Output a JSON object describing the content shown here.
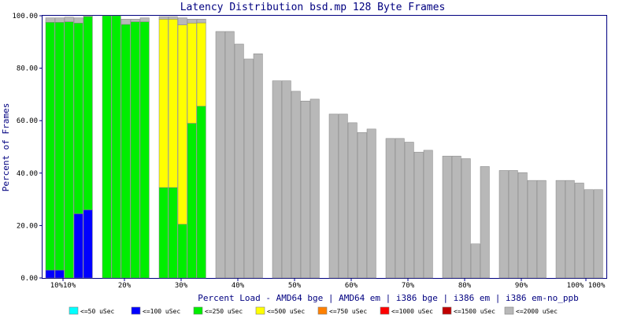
{
  "chart_data": {
    "type": "bar",
    "stacked": true,
    "title": "Latency Distribution bsd.mp 128 Byte Frames",
    "xlabel": "Percent Load - AMD64 bge | AMD64 em | i386 bge | i386 em | i386 em-no_ppb",
    "ylabel": "Percent of Frames",
    "ylim": [
      0,
      100
    ],
    "yticks": [
      "0.00",
      "20.00",
      "40.00",
      "60.00",
      "80.00",
      "100.00"
    ],
    "grid": false,
    "legend_position": "bottom",
    "x_tick_labels": [
      "10%10%",
      "20%",
      "30%",
      "40%",
      "50%",
      "60%",
      "70%",
      "80%",
      "90%",
      "100% 100%"
    ],
    "groups_by_load": [
      "10%",
      "20%",
      "30%",
      "40%",
      "50%",
      "60%",
      "70%",
      "80%",
      "90%",
      "100%"
    ],
    "configs": [
      "AMD64 bge",
      "AMD64 em",
      "i386 bge",
      "i386 em",
      "i386 em-no_ppb"
    ],
    "series": [
      {
        "name": "<=50 uSec",
        "color": "#00ffff",
        "cumulative": [
          [
            0,
            0,
            0,
            0,
            0
          ],
          [
            0,
            0,
            0,
            0,
            0
          ],
          [
            0,
            0,
            0,
            0,
            0
          ],
          [
            0,
            0,
            0,
            0,
            0
          ],
          [
            0,
            0,
            0,
            0,
            0
          ],
          [
            0,
            0,
            0,
            0,
            0
          ],
          [
            0,
            0,
            0,
            0,
            0
          ],
          [
            0,
            0,
            0,
            0,
            0
          ],
          [
            0,
            0,
            0,
            0,
            0
          ],
          [
            0,
            0,
            0,
            0,
            0
          ]
        ]
      },
      {
        "name": "<=100 uSec",
        "color": "#0000ff",
        "cumulative": [
          [
            3,
            3,
            0,
            24.5,
            26
          ],
          [
            0,
            0,
            0,
            0,
            0
          ],
          [
            0,
            0,
            0,
            0,
            0
          ],
          [
            0,
            0,
            0,
            0,
            0
          ],
          [
            0,
            0,
            0,
            0,
            0
          ],
          [
            0,
            0,
            0,
            0,
            0
          ],
          [
            0,
            0,
            0,
            0,
            0
          ],
          [
            0,
            0,
            0,
            0,
            0
          ],
          [
            0,
            0,
            0,
            0,
            0
          ],
          [
            0,
            0,
            0,
            0,
            0
          ]
        ]
      },
      {
        "name": "<=250 uSec",
        "color": "#00ee00",
        "cumulative": [
          [
            97.5,
            97.5,
            97.7,
            97.2,
            99.7
          ],
          [
            100,
            100,
            96.7,
            97.7,
            97.7
          ],
          [
            34.5,
            34.5,
            20.5,
            59,
            65.5
          ],
          [
            0,
            0,
            0,
            0,
            0
          ],
          [
            0,
            0,
            0,
            0,
            0
          ],
          [
            0,
            0,
            0,
            0,
            0
          ],
          [
            0,
            0,
            0,
            0,
            0
          ],
          [
            0,
            0,
            0,
            0,
            0
          ],
          [
            0,
            0,
            0,
            0,
            0
          ],
          [
            0,
            0,
            0,
            0,
            0
          ]
        ]
      },
      {
        "name": "<=500 uSec",
        "color": "#ffff00",
        "cumulative": [
          [
            97.5,
            97.5,
            97.7,
            97.2,
            99.7
          ],
          [
            100,
            100,
            96.7,
            97.7,
            97.7
          ],
          [
            98.7,
            98.7,
            96.5,
            97.2,
            97.3
          ],
          [
            0,
            0,
            0,
            0,
            0
          ],
          [
            0,
            0,
            0,
            0,
            0
          ],
          [
            0,
            0,
            0,
            0,
            0
          ],
          [
            0,
            0,
            0,
            0,
            0
          ],
          [
            0,
            0,
            0,
            0,
            0
          ],
          [
            0,
            0,
            0,
            0,
            0
          ],
          [
            0,
            0,
            0,
            0,
            0
          ]
        ]
      },
      {
        "name": "<=750 uSec",
        "color": "#ff8000",
        "cumulative": [
          [
            97.5,
            97.5,
            97.7,
            97.2,
            99.7
          ],
          [
            100,
            100,
            96.7,
            97.7,
            97.7
          ],
          [
            98.7,
            98.7,
            96.5,
            97.2,
            97.3
          ],
          [
            0,
            0,
            0,
            0,
            0
          ],
          [
            0,
            0,
            0,
            0,
            0
          ],
          [
            0,
            0,
            0,
            0,
            0
          ],
          [
            0,
            0,
            0,
            0,
            0
          ],
          [
            0,
            0,
            0,
            0,
            0
          ],
          [
            0,
            0,
            0,
            0,
            0
          ],
          [
            0,
            0,
            0,
            0,
            0
          ]
        ]
      },
      {
        "name": "<=1000 uSec",
        "color": "#ff0000",
        "cumulative": [
          [
            97.5,
            97.5,
            97.7,
            97.2,
            99.7
          ],
          [
            100,
            100,
            96.7,
            97.7,
            97.7
          ],
          [
            98.7,
            98.7,
            96.5,
            97.2,
            97.3
          ],
          [
            0,
            0,
            0,
            0,
            0
          ],
          [
            0,
            0,
            0,
            0,
            0
          ],
          [
            0,
            0,
            0,
            0,
            0
          ],
          [
            0,
            0,
            0,
            0,
            0
          ],
          [
            0,
            0,
            0,
            0,
            0
          ],
          [
            0,
            0,
            0,
            0,
            0
          ],
          [
            0,
            0,
            0,
            0,
            0
          ]
        ]
      },
      {
        "name": "<=1500 uSec",
        "color": "#c00000",
        "cumulative": [
          [
            97.5,
            97.5,
            97.7,
            97.2,
            99.7
          ],
          [
            100,
            100,
            96.7,
            97.7,
            97.7
          ],
          [
            98.7,
            98.7,
            96.5,
            97.2,
            97.3
          ],
          [
            0,
            0,
            0,
            0,
            0
          ],
          [
            0,
            0,
            0,
            0,
            0
          ],
          [
            0,
            0,
            0,
            0,
            0
          ],
          [
            0,
            0,
            0,
            0,
            0
          ],
          [
            0,
            0,
            0,
            0,
            0
          ],
          [
            0,
            0,
            0,
            0,
            0
          ],
          [
            0,
            0,
            0,
            0,
            0
          ]
        ]
      },
      {
        "name": "<=2000 uSec",
        "color": "#b8b8b8",
        "cumulative": [
          [
            99.2,
            99.2,
            99.5,
            99.2,
            100
          ],
          [
            100,
            100,
            98.7,
            98.7,
            99.2
          ],
          [
            99.7,
            99.7,
            99.2,
            98.7,
            98.7
          ],
          [
            94,
            94,
            89.2,
            83.5,
            85.5
          ],
          [
            75.2,
            75.2,
            71.2,
            67.5,
            68.2
          ],
          [
            62.5,
            62.5,
            59.2,
            55.5,
            56.8
          ],
          [
            53.2,
            53.2,
            51.8,
            48,
            48.7
          ],
          [
            46.5,
            46.5,
            45.5,
            13,
            42.5
          ],
          [
            41,
            41,
            40.2,
            37.2,
            37.2
          ],
          [
            37.2,
            37.2,
            36.2,
            33.7,
            33.7
          ]
        ]
      }
    ]
  },
  "legend": [
    {
      "label": "<=50 uSec",
      "color": "#00ffff"
    },
    {
      "label": "<=100 uSec",
      "color": "#0000ff"
    },
    {
      "label": "<=250 uSec",
      "color": "#00ee00"
    },
    {
      "label": "<=500 uSec",
      "color": "#ffff00"
    },
    {
      "label": "<=750 uSec",
      "color": "#ff8000"
    },
    {
      "label": "<=1000 uSec",
      "color": "#ff0000"
    },
    {
      "label": "<=1500 uSec",
      "color": "#c00000"
    },
    {
      "label": "<=2000 uSec",
      "color": "#b8b8b8"
    }
  ],
  "colors": {
    "axis": "#000080",
    "bar_outline": "#808080",
    "frame": "#000080"
  }
}
